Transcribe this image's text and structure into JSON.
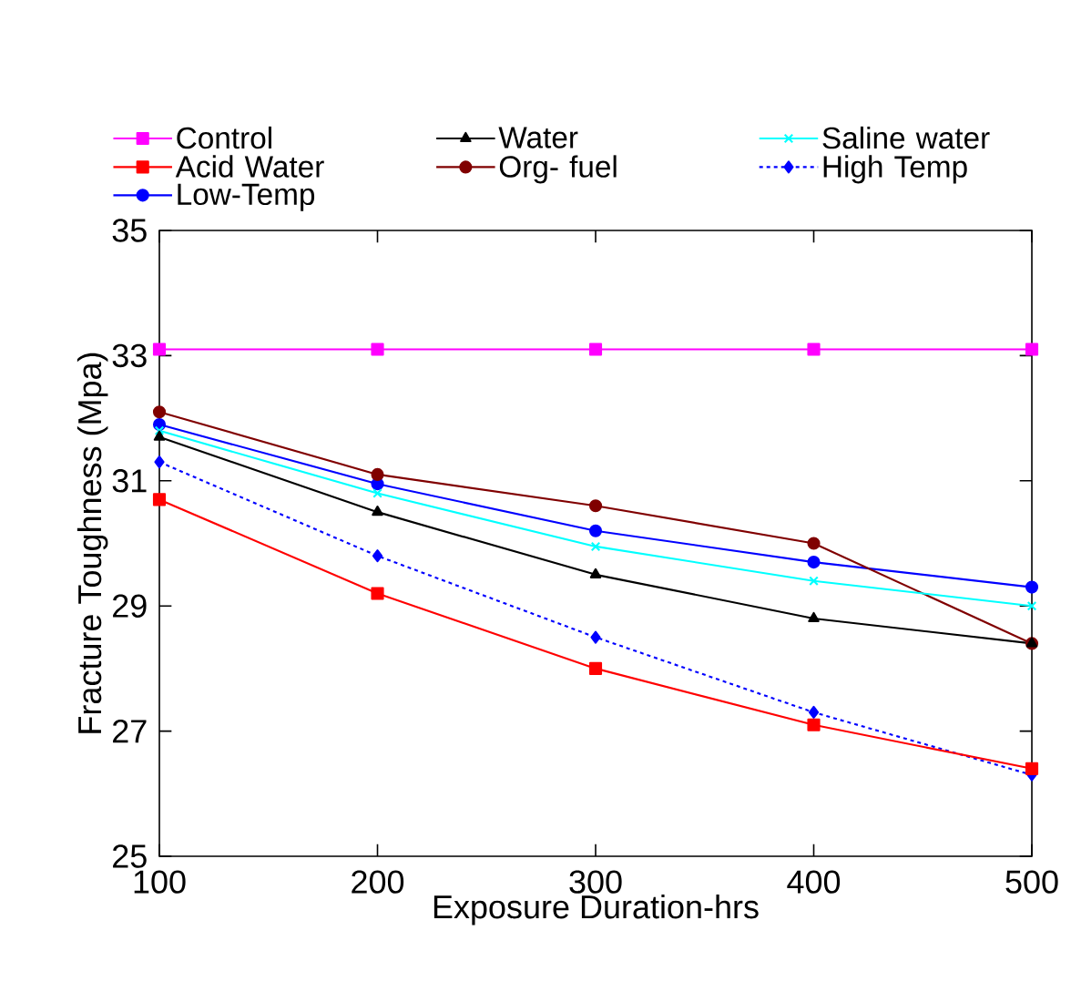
{
  "chart_data": {
    "type": "line",
    "xlabel": "Exposure Duration-hrs",
    "ylabel": "Fracture Toughness (Mpa)",
    "x": [
      100,
      200,
      300,
      400,
      500
    ],
    "xlim": [
      100,
      500
    ],
    "xticks": [
      100,
      200,
      300,
      400,
      500
    ],
    "ylim": [
      25,
      35
    ],
    "yticks": [
      25,
      27,
      29,
      31,
      33,
      35
    ],
    "legend": "top",
    "grid": false,
    "series": [
      {
        "name": "Control",
        "color": "#ff00ff",
        "marker": "square",
        "line_style": "solid",
        "values": [
          33.1,
          33.1,
          33.1,
          33.1,
          33.1
        ]
      },
      {
        "name": "Water",
        "color": "#000000",
        "marker": "triangle",
        "line_style": "solid",
        "values": [
          31.7,
          30.5,
          29.5,
          28.8,
          28.4
        ]
      },
      {
        "name": "Saline water",
        "color": "#00ffff",
        "marker": "cross",
        "line_style": "solid",
        "values": [
          31.8,
          30.8,
          29.95,
          29.4,
          29.0
        ]
      },
      {
        "name": "Acid Water",
        "color": "#ff0000",
        "marker": "square",
        "line_style": "solid",
        "values": [
          30.7,
          29.2,
          28.0,
          27.1,
          26.4
        ]
      },
      {
        "name": "Org- fuel",
        "color": "#800000",
        "marker": "circle",
        "line_style": "solid",
        "values": [
          32.1,
          31.1,
          30.6,
          30.0,
          28.4
        ]
      },
      {
        "name": "High Temp",
        "color": "#0000ff",
        "marker": "diamond",
        "line_style": "dashed",
        "values": [
          31.3,
          29.8,
          28.5,
          27.3,
          26.3
        ]
      },
      {
        "name": "Low-Temp",
        "color": "#0000ff",
        "marker": "circle",
        "line_style": "solid",
        "values": [
          31.9,
          30.95,
          30.2,
          29.7,
          29.3
        ]
      }
    ]
  }
}
